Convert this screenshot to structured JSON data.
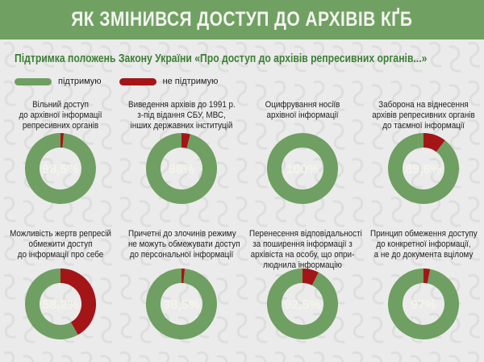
{
  "header": {
    "title": "ЯК ЗМІНИВСЯ ДОСТУП ДО АРХІВІВ КҐБ"
  },
  "colors": {
    "support": "#6f9f62",
    "oppose": "#a41518",
    "header_bg": "#70a163",
    "subtitle": "#3c7f35",
    "background": "#ebebeb"
  },
  "chart_data": {
    "type": "pie",
    "title": "Підтримка положень Закону України «Про доступ до архівів репресивних органів...»",
    "legend": {
      "placement": "top-left",
      "entries": [
        {
          "key": "support",
          "label": "підтримую"
        },
        {
          "key": "oppose",
          "label": "не підтримую"
        }
      ]
    },
    "charts": [
      {
        "label_lines": [
          "Вільний доступ",
          "до архівної інформації",
          "репресивних органів"
        ],
        "support": 98.5,
        "oppose": 1.5,
        "value_label": "98,5%"
      },
      {
        "label_lines": [
          "Виведення архівів до 1991 р.",
          "з-під відання СБУ, МВС,",
          "інших державних інституцій"
        ],
        "support": 96,
        "oppose": 4,
        "value_label": "96%"
      },
      {
        "label_lines": [
          "Оцифрування носіїв",
          "архівної інформації"
        ],
        "support": 100,
        "oppose": 0,
        "value_label": "100%"
      },
      {
        "label_lines": [
          "Заборона на віднесення",
          "архівів репресивних органів",
          "до таємної інформації"
        ],
        "support": 89.6,
        "oppose": 10.4,
        "value_label": "89,6%"
      },
      {
        "label_lines": [
          "Можливість жертв репресій",
          "обмежити доступ",
          "до інформації про себе"
        ],
        "support": 58.2,
        "oppose": 41.8,
        "value_label": "58,2%"
      },
      {
        "label_lines": [
          "Причетні до злочинів режиму",
          "не можуть обмежувати доступ",
          "до персональної інформації"
        ],
        "support": 98.5,
        "oppose": 1.5,
        "value_label": "98,5%"
      },
      {
        "label_lines": [
          "Перенесення відповідальності",
          "за поширення інформації з",
          "архівіста на особу, що опри-",
          "люднила інформацію"
        ],
        "support": 92.5,
        "oppose": 7.5,
        "value_label": "92,5%"
      },
      {
        "label_lines": [
          "Принцип обмеження доступу",
          "до конкретної інформації,",
          "а не до документа вцілому"
        ],
        "support": 97,
        "oppose": 3,
        "value_label": "97%"
      }
    ]
  }
}
